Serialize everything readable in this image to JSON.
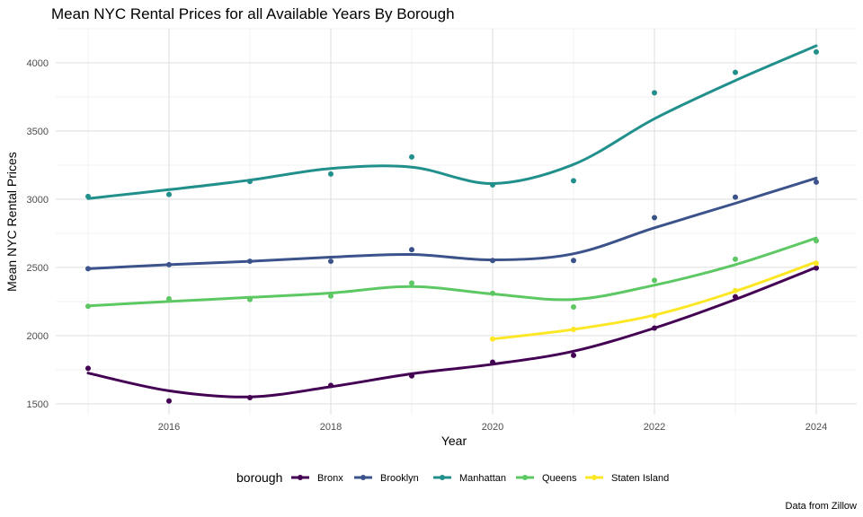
{
  "chart_data": {
    "type": "line",
    "title": "Mean NYC Rental Prices for all Available Years By Borough",
    "xlabel": "Year",
    "ylabel": "Mean NYC Rental Prices",
    "caption": "Data from Zillow",
    "legend_title": "borough",
    "legend_position": "bottom",
    "grid": true,
    "xlim": [
      2014.6,
      2024.5
    ],
    "ylim": [
      1420,
      4250
    ],
    "x_ticks": [
      2016,
      2018,
      2020,
      2022,
      2024
    ],
    "y_ticks": [
      1500,
      2000,
      2500,
      3000,
      3500,
      4000
    ],
    "series": [
      {
        "name": "Bronx",
        "color": "#440154",
        "points": [
          [
            2015,
            1760
          ],
          [
            2016,
            1520
          ],
          [
            2017,
            1545
          ],
          [
            2018,
            1635
          ],
          [
            2019,
            1705
          ],
          [
            2020,
            1805
          ],
          [
            2021,
            1855
          ],
          [
            2022,
            2055
          ],
          [
            2023,
            2285
          ],
          [
            2024,
            2495
          ]
        ],
        "smooth": [
          [
            2015,
            1725
          ],
          [
            2016,
            1595
          ],
          [
            2017,
            1550
          ],
          [
            2018,
            1625
          ],
          [
            2019,
            1720
          ],
          [
            2020,
            1790
          ],
          [
            2021,
            1885
          ],
          [
            2022,
            2055
          ],
          [
            2023,
            2265
          ],
          [
            2024,
            2500
          ]
        ]
      },
      {
        "name": "Brooklyn",
        "color": "#3B528B",
        "points": [
          [
            2015,
            2490
          ],
          [
            2016,
            2520
          ],
          [
            2017,
            2545
          ],
          [
            2018,
            2545
          ],
          [
            2019,
            2630
          ],
          [
            2020,
            2550
          ],
          [
            2021,
            2550
          ],
          [
            2022,
            2865
          ],
          [
            2023,
            3015
          ],
          [
            2024,
            3125
          ]
        ],
        "smooth": [
          [
            2015,
            2490
          ],
          [
            2016,
            2520
          ],
          [
            2017,
            2545
          ],
          [
            2018,
            2575
          ],
          [
            2019,
            2595
          ],
          [
            2020,
            2555
          ],
          [
            2021,
            2600
          ],
          [
            2022,
            2790
          ],
          [
            2023,
            2970
          ],
          [
            2024,
            3155
          ]
        ]
      },
      {
        "name": "Manhattan",
        "color": "#21908C",
        "points": [
          [
            2015,
            3020
          ],
          [
            2016,
            3035
          ],
          [
            2017,
            3130
          ],
          [
            2018,
            3185
          ],
          [
            2019,
            3310
          ],
          [
            2020,
            3105
          ],
          [
            2021,
            3135
          ],
          [
            2022,
            3780
          ],
          [
            2023,
            3930
          ],
          [
            2024,
            4080
          ]
        ],
        "smooth": [
          [
            2015,
            3005
          ],
          [
            2016,
            3070
          ],
          [
            2017,
            3140
          ],
          [
            2018,
            3225
          ],
          [
            2019,
            3235
          ],
          [
            2020,
            3115
          ],
          [
            2021,
            3255
          ],
          [
            2022,
            3590
          ],
          [
            2023,
            3870
          ],
          [
            2024,
            4125
          ]
        ]
      },
      {
        "name": "Queens",
        "color": "#5DC863",
        "points": [
          [
            2015,
            2215
          ],
          [
            2016,
            2270
          ],
          [
            2017,
            2265
          ],
          [
            2018,
            2290
          ],
          [
            2019,
            2385
          ],
          [
            2020,
            2310
          ],
          [
            2021,
            2210
          ],
          [
            2022,
            2405
          ],
          [
            2023,
            2560
          ],
          [
            2024,
            2695
          ]
        ],
        "smooth": [
          [
            2015,
            2218
          ],
          [
            2016,
            2250
          ],
          [
            2017,
            2280
          ],
          [
            2018,
            2312
          ],
          [
            2019,
            2360
          ],
          [
            2020,
            2305
          ],
          [
            2021,
            2265
          ],
          [
            2022,
            2370
          ],
          [
            2023,
            2520
          ],
          [
            2024,
            2715
          ]
        ]
      },
      {
        "name": "Staten Island",
        "color": "#FDE725",
        "points": [
          [
            2020,
            1975
          ],
          [
            2021,
            2045
          ],
          [
            2022,
            2145
          ],
          [
            2023,
            2330
          ],
          [
            2024,
            2530
          ]
        ],
        "smooth": [
          [
            2020,
            1975
          ],
          [
            2021,
            2045
          ],
          [
            2022,
            2150
          ],
          [
            2023,
            2325
          ],
          [
            2024,
            2540
          ]
        ]
      }
    ]
  }
}
